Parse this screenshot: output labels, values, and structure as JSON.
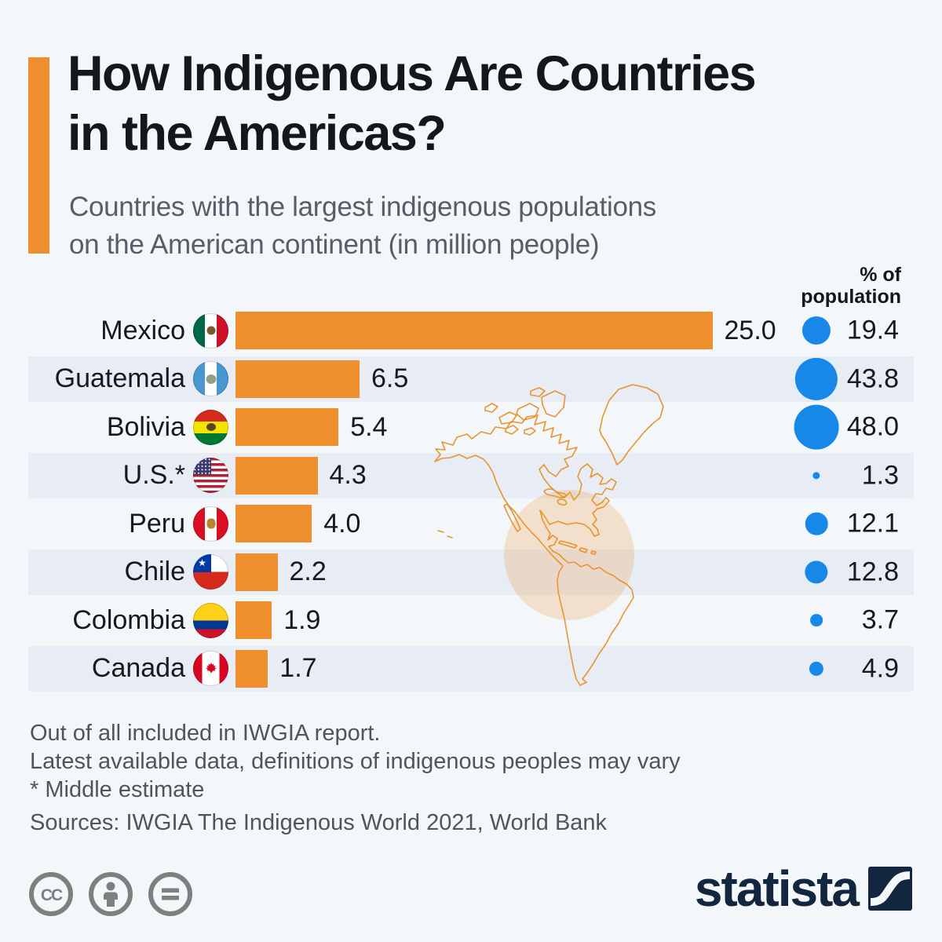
{
  "title": {
    "line1": "How Indigenous Are Countries",
    "line2": "in the Americas?"
  },
  "subtitle": {
    "line1": "Countries with the largest indigenous populations",
    "line2": "on the American continent (in million people)"
  },
  "column_header": {
    "line1": "% of",
    "line2": "population"
  },
  "rows": [
    {
      "country": "Mexico",
      "flag": "mexico",
      "population_millions": 25.0,
      "value_label": "25.0",
      "pct_of_population": 19.4,
      "pct_label": "19.4"
    },
    {
      "country": "Guatemala",
      "flag": "guatemala",
      "population_millions": 6.5,
      "value_label": "6.5",
      "pct_of_population": 43.8,
      "pct_label": "43.8"
    },
    {
      "country": "Bolivia",
      "flag": "bolivia",
      "population_millions": 5.4,
      "value_label": "5.4",
      "pct_of_population": 48.0,
      "pct_label": "48.0"
    },
    {
      "country": "U.S.*",
      "flag": "us",
      "population_millions": 4.3,
      "value_label": "4.3",
      "pct_of_population": 1.3,
      "pct_label": "1.3"
    },
    {
      "country": "Peru",
      "flag": "peru",
      "population_millions": 4.0,
      "value_label": "4.0",
      "pct_of_population": 12.1,
      "pct_label": "12.1"
    },
    {
      "country": "Chile",
      "flag": "chile",
      "population_millions": 2.2,
      "value_label": "2.2",
      "pct_of_population": 12.8,
      "pct_label": "12.8"
    },
    {
      "country": "Colombia",
      "flag": "colombia",
      "population_millions": 1.9,
      "value_label": "1.9",
      "pct_of_population": 3.7,
      "pct_label": "3.7"
    },
    {
      "country": "Canada",
      "flag": "canada",
      "population_millions": 1.7,
      "value_label": "1.7",
      "pct_of_population": 4.9,
      "pct_label": "4.9"
    }
  ],
  "chart_data": {
    "type": "bar",
    "orientation": "horizontal",
    "title": "How Indigenous Are Countries in the Americas?",
    "subtitle": "Countries with the largest indigenous populations on the American continent (in million people)",
    "categories": [
      "Mexico",
      "Guatemala",
      "Bolivia",
      "U.S.*",
      "Peru",
      "Chile",
      "Colombia",
      "Canada"
    ],
    "series": [
      {
        "name": "Indigenous population (million people)",
        "values": [
          25.0,
          6.5,
          5.4,
          4.3,
          4.0,
          2.2,
          1.9,
          1.7
        ]
      },
      {
        "name": "% of population",
        "values": [
          19.4,
          43.8,
          48.0,
          1.3,
          12.1,
          12.8,
          3.7,
          4.9
        ]
      }
    ],
    "xlim": [
      0,
      25.6
    ],
    "grid": false,
    "legend_position": "none"
  },
  "footnotes": [
    "Out of all included in IWGIA report.",
    "Latest available data, definitions of indigenous peoples may vary",
    "* Middle estimate"
  ],
  "source_line": "Sources: IWGIA The Indigenous World 2021, World Bank",
  "branding": {
    "wordmark": "statista"
  },
  "colors": {
    "background": "#f4f7f9",
    "row_stripe": "#e8edf5",
    "bar_orange": "#ef8e2c",
    "accent_orange": "#ef8e2c",
    "pct_circle_blue": "#1787e8",
    "map_outline_orange": "#e8952f",
    "map_highlight": "rgba(239,142,44,0.22)",
    "logo_navy": "#12273f",
    "text_dark": "#17191c",
    "text_gray": "#4e555b",
    "license_gray": "#7b817e"
  }
}
